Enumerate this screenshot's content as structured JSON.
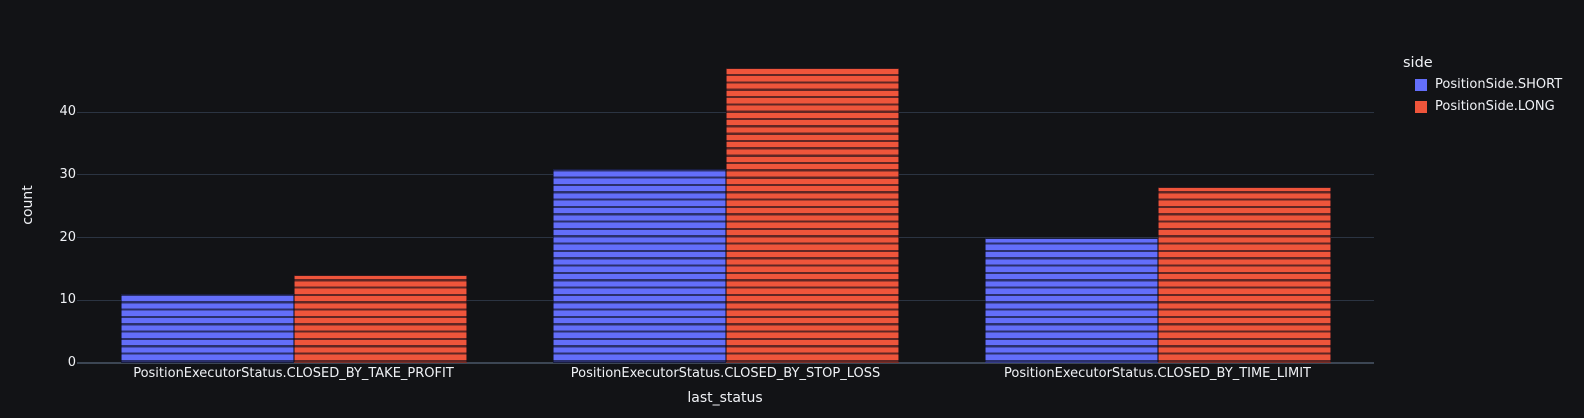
{
  "colors": {
    "background": "#121316",
    "grid": "#2b3442",
    "axis_line": "#3c4654",
    "text": "#f0f2f6"
  },
  "chart_data": {
    "type": "bar",
    "mode": "grouped",
    "title": "",
    "xlabel": "last_status",
    "ylabel": "count",
    "categories": [
      "PositionExecutorStatus.CLOSED_BY_TAKE_PROFIT",
      "PositionExecutorStatus.CLOSED_BY_STOP_LOSS",
      "PositionExecutorStatus.CLOSED_BY_TIME_LIMIT"
    ],
    "series": [
      {
        "name": "PositionSide.SHORT",
        "color": "#636EFA",
        "values": [
          11,
          31,
          20
        ]
      },
      {
        "name": "PositionSide.LONG",
        "color": "#EF553B",
        "values": [
          14,
          47,
          28
        ]
      }
    ],
    "yticks": [
      0,
      10,
      20,
      30,
      40
    ],
    "ylim": [
      0,
      50
    ],
    "grid": true,
    "legend_title": "side",
    "legend_position": "right",
    "bar_pattern": "horizontal-lines",
    "theme": "dark"
  }
}
